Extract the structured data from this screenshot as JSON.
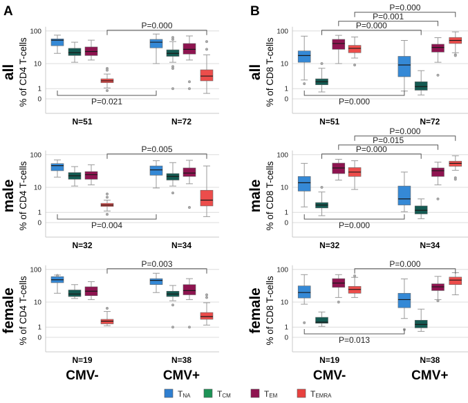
{
  "chart_data": {
    "type": "boxplot",
    "y_scale": "log10(x+1)",
    "y_ticks": [
      "100",
      "10",
      "1",
      "0"
    ],
    "y_tick_values": [
      100,
      10,
      1,
      0
    ],
    "groups": [
      "CMV-",
      "CMV+"
    ],
    "legend": [
      {
        "key": "TNA",
        "base": "T",
        "sub": "NA",
        "color": "#2f7fd0"
      },
      {
        "key": "TCM",
        "base": "T",
        "sub": "CM",
        "color": "#1d9356"
      },
      {
        "key": "TEM",
        "base": "T",
        "sub": "EM",
        "color": "#8e1450"
      },
      {
        "key": "TEMRA",
        "base": "T",
        "sub": "EMRA",
        "color": "#e8413f"
      }
    ],
    "box_colors": {
      "TNA": "#3589d6",
      "TCM": "#145a52",
      "TEM": "#8e1450",
      "TEMRA": "#ec4d4b"
    },
    "panels": [
      {
        "id": "A-all",
        "letter": "A",
        "row_label": "all",
        "ylabel": "% of CD4 T-cells",
        "n_labels": [
          "N=51",
          "N=72"
        ],
        "boxes": {
          "CMV-": {
            "TNA": {
              "low": 21,
              "q1": 36,
              "median": 53,
              "q3": 58,
              "high": 75,
              "outliers": []
            },
            "TCM": {
              "low": 11,
              "q1": 18,
              "median": 22,
              "q3": 30,
              "high": 46,
              "outliers": []
            },
            "TEM": {
              "low": 13,
              "q1": 18,
              "median": 24,
              "q3": 33,
              "high": 53,
              "outliers": []
            },
            "TEMRA": {
              "low": 1.1,
              "q1": 2.0,
              "median": 2.4,
              "q3": 2.9,
              "high": 4.4,
              "outliers": [
                6.9,
                6,
                0.75
              ]
            }
          },
          "CMV+": {
            "TNA": {
              "low": 10,
              "q1": 31,
              "median": 46,
              "q3": 56,
              "high": 81,
              "outliers": []
            },
            "TCM": {
              "low": 11,
              "q1": 17,
              "median": 21,
              "q3": 27,
              "high": 48,
              "outliers": [
                64,
                56,
                8,
                6.9,
                1
              ]
            },
            "TEM": {
              "low": 13,
              "q1": 20,
              "median": 28,
              "q3": 42,
              "high": 71,
              "outliers": [
                2.2,
                1
              ]
            },
            "TEMRA": {
              "low": 0.45,
              "q1": 2.4,
              "median": 3.7,
              "q3": 6.2,
              "high": 19,
              "outliers": [
                48,
                28
              ]
            }
          }
        },
        "brackets": [
          {
            "from": [
              "CMV-",
              "TEMRA"
            ],
            "to": [
              "CMV+",
              "TEMRA"
            ],
            "label": "P=0.000",
            "side": "top",
            "level": 0
          },
          {
            "from": [
              "CMV-",
              "TNA"
            ],
            "to": [
              "CMV+",
              "TNA"
            ],
            "label": "P=0.021",
            "side": "bottom",
            "level": 0
          }
        ]
      },
      {
        "id": "B-all",
        "letter": "B",
        "row_label": "all",
        "ylabel": "% of CD8 T-cells",
        "n_labels": [
          "N=51",
          "N=72"
        ],
        "boxes": {
          "CMV-": {
            "TNA": {
              "low": 2.6,
              "q1": 11,
              "median": 18,
              "q3": 25,
              "high": 70,
              "outliers": [
                1.8
              ]
            },
            "TCM": {
              "low": 0.6,
              "q1": 1.6,
              "median": 2.2,
              "q3": 2.9,
              "high": 7,
              "outliers": [
                10
              ]
            },
            "TEM": {
              "low": 10,
              "q1": 28,
              "median": 42,
              "q3": 56,
              "high": 74,
              "outliers": []
            },
            "TEMRA": {
              "low": 15,
              "q1": 22,
              "median": 30,
              "q3": 37,
              "high": 66,
              "outliers": [
                9
              ]
            }
          },
          "CMV+": {
            "TNA": {
              "low": 0.7,
              "q1": 3.5,
              "median": 9,
              "q3": 17,
              "high": 52,
              "outliers": []
            },
            "TCM": {
              "low": 0.3,
              "q1": 0.8,
              "median": 1.3,
              "q3": 2.2,
              "high": 5.8,
              "outliers": []
            },
            "TEM": {
              "low": 11,
              "q1": 23,
              "median": 32,
              "q3": 40,
              "high": 63,
              "outliers": [
                4
              ]
            },
            "TEMRA": {
              "low": 22,
              "q1": 42,
              "median": 52,
              "q3": 64,
              "high": 94,
              "outliers": [
                19,
                18
              ]
            }
          }
        },
        "brackets": [
          {
            "from": [
              "CMV-",
              "TEMRA"
            ],
            "to": [
              "CMV+",
              "TEMRA"
            ],
            "label": "P=0.000",
            "side": "top",
            "level": 2
          },
          {
            "from": [
              "CMV-",
              "TEM"
            ],
            "to": [
              "CMV+",
              "TEM"
            ],
            "label": "P=0.001",
            "side": "top",
            "level": 1
          },
          {
            "from": [
              "CMV-",
              "TCM"
            ],
            "to": [
              "CMV+",
              "TCM"
            ],
            "label": "P=0.000",
            "side": "top",
            "level": 0
          },
          {
            "from": [
              "CMV-",
              "TNA"
            ],
            "to": [
              "CMV+",
              "TNA"
            ],
            "label": "P=0.000",
            "side": "bottom",
            "level": 0
          }
        ]
      },
      {
        "id": "A-male",
        "letter": "",
        "row_label": "male",
        "ylabel": "% of CD4 T-cells",
        "n_labels": [
          "N=32",
          "N=34"
        ],
        "boxes": {
          "CMV-": {
            "TNA": {
              "low": 21,
              "q1": 33,
              "median": 47,
              "q3": 54,
              "high": 70,
              "outliers": []
            },
            "TCM": {
              "low": 11,
              "q1": 18,
              "median": 23,
              "q3": 29,
              "high": 44,
              "outliers": []
            },
            "TEM": {
              "low": 12,
              "q1": 18,
              "median": 25,
              "q3": 31,
              "high": 50,
              "outliers": []
            },
            "TEMRA": {
              "low": 1.2,
              "q1": 2.0,
              "median": 2.3,
              "q3": 2.7,
              "high": 3.6,
              "outliers": [
                6,
                4.6,
                0.75
              ]
            }
          },
          "CMV+": {
            "TNA": {
              "low": 9.5,
              "q1": 24,
              "median": 35,
              "q3": 46,
              "high": 66,
              "outliers": []
            },
            "TCM": {
              "low": 11,
              "q1": 17,
              "median": 22,
              "q3": 27,
              "high": 58,
              "outliers": [
                6.5
              ]
            },
            "TEM": {
              "low": 13,
              "q1": 22,
              "median": 28,
              "q3": 40,
              "high": 68,
              "outliers": [
                1.8
              ]
            },
            "TEMRA": {
              "low": 0.5,
              "q1": 2.1,
              "median": 3.6,
              "q3": 8,
              "high": 46,
              "outliers": []
            }
          }
        },
        "brackets": [
          {
            "from": [
              "CMV-",
              "TEMRA"
            ],
            "to": [
              "CMV+",
              "TEMRA"
            ],
            "label": "P=0.005",
            "side": "top",
            "level": 0
          },
          {
            "from": [
              "CMV-",
              "TNA"
            ],
            "to": [
              "CMV+",
              "TNA"
            ],
            "label": "P=0.004",
            "side": "bottom",
            "level": 0
          }
        ]
      },
      {
        "id": "B-male",
        "letter": "",
        "row_label": "male",
        "ylabel": "% of CD8 T-cells",
        "n_labels": [
          "N=32",
          "N=34"
        ],
        "boxes": {
          "CMV-": {
            "TNA": {
              "low": 1.9,
              "q1": 7.5,
              "median": 14,
              "q3": 22,
              "high": 55,
              "outliers": []
            },
            "TCM": {
              "low": 0.6,
              "q1": 1.7,
              "median": 2.3,
              "q3": 2.9,
              "high": 7,
              "outliers": [
                10
              ]
            },
            "TEM": {
              "low": 17,
              "q1": 27,
              "median": 40,
              "q3": 56,
              "high": 73,
              "outliers": []
            },
            "TEMRA": {
              "low": 8.5,
              "q1": 22,
              "median": 30,
              "q3": 41,
              "high": 66,
              "outliers": []
            }
          },
          "CMV+": {
            "TNA": {
              "low": 1.1,
              "q1": 2.3,
              "median": 4,
              "q3": 11,
              "high": 30,
              "outliers": []
            },
            "TCM": {
              "low": 0.3,
              "q1": 0.8,
              "median": 1.3,
              "q3": 2.1,
              "high": 4,
              "outliers": []
            },
            "TEM": {
              "low": 12,
              "q1": 22,
              "median": 33,
              "q3": 40,
              "high": 60,
              "outliers": [
                4
              ]
            },
            "TEMRA": {
              "low": 34,
              "q1": 45,
              "median": 55,
              "q3": 64,
              "high": 93,
              "outliers": [
                20,
                18
              ]
            }
          }
        },
        "brackets": [
          {
            "from": [
              "CMV-",
              "TEMRA"
            ],
            "to": [
              "CMV+",
              "TEMRA"
            ],
            "label": "P=0.000",
            "side": "top",
            "level": 2
          },
          {
            "from": [
              "CMV-",
              "TEM"
            ],
            "to": [
              "CMV+",
              "TEM"
            ],
            "label": "P=0.015",
            "side": "top",
            "level": 1
          },
          {
            "from": [
              "CMV-",
              "TCM"
            ],
            "to": [
              "CMV+",
              "TCM"
            ],
            "label": "P=0.000",
            "side": "top",
            "level": 0
          },
          {
            "from": [
              "CMV-",
              "TNA"
            ],
            "to": [
              "CMV+",
              "TNA"
            ],
            "label": "P=0.000",
            "side": "bottom",
            "level": 0
          }
        ]
      },
      {
        "id": "A-female",
        "letter": "",
        "row_label": "female",
        "ylabel": "% of CD4 T-cells",
        "n_labels": [
          "N=19",
          "N=38"
        ],
        "boxes": {
          "CMV-": {
            "TNA": {
              "low": 19,
              "q1": 40,
              "median": 49,
              "q3": 61,
              "high": 68,
              "outliers": [
                66
              ]
            },
            "TCM": {
              "low": 13,
              "q1": 15,
              "median": 18,
              "q3": 24,
              "high": 35,
              "outliers": []
            },
            "TEM": {
              "low": 12,
              "q1": 16,
              "median": 22,
              "q3": 30,
              "high": 43,
              "outliers": []
            },
            "TEMRA": {
              "low": 1.2,
              "q1": 1.5,
              "median": 2.0,
              "q3": 2.4,
              "high": 4.8,
              "outliers": [
                6.2
              ]
            }
          },
          "CMV+": {
            "TNA": {
              "low": 20,
              "q1": 35,
              "median": 47,
              "q3": 53,
              "high": 77,
              "outliers": []
            },
            "TCM": {
              "low": 11,
              "q1": 15,
              "median": 18,
              "q3": 22,
              "high": 33,
              "outliers": [
                8,
                1
              ]
            },
            "TEM": {
              "low": 12,
              "q1": 17,
              "median": 23,
              "q3": 35,
              "high": 53,
              "outliers": [
                1
              ]
            },
            "TEMRA": {
              "low": 1.3,
              "q1": 2.4,
              "median": 3.1,
              "q3": 4.4,
              "high": 9.5,
              "outliers": [
                17,
                14
              ]
            }
          }
        },
        "brackets": [
          {
            "from": [
              "CMV-",
              "TEMRA"
            ],
            "to": [
              "CMV+",
              "TEMRA"
            ],
            "label": "P=0.003",
            "side": "top",
            "level": 0
          }
        ]
      },
      {
        "id": "B-female",
        "letter": "",
        "row_label": "female",
        "ylabel": "% of CD8 T-cells",
        "n_labels": [
          "N=19",
          "N=38"
        ],
        "boxes": {
          "CMV-": {
            "TNA": {
              "low": 8.5,
              "q1": 13.5,
              "median": 20,
              "q3": 32,
              "high": 70,
              "outliers": [
                1.7
              ]
            },
            "TCM": {
              "low": 1.1,
              "q1": 1.6,
              "median": 1.8,
              "q3": 2.9,
              "high": 4.6,
              "outliers": []
            },
            "TEM": {
              "low": 14,
              "q1": 29,
              "median": 39,
              "q3": 53,
              "high": 70,
              "outliers": [
                10
              ]
            },
            "TEMRA": {
              "low": 14,
              "q1": 19,
              "median": 25,
              "q3": 31,
              "high": 58,
              "outliers": [
                64
              ]
            }
          },
          "CMV+": {
            "TNA": {
              "low": 2.6,
              "q1": 6.5,
              "median": 12,
              "q3": 19,
              "high": 52,
              "outliers": [
                0.7
              ]
            },
            "TCM": {
              "low": 0.5,
              "q1": 0.9,
              "median": 1.4,
              "q3": 2.2,
              "high": 5.8,
              "outliers": []
            },
            "TEM": {
              "low": 12,
              "q1": 23,
              "median": 30,
              "q3": 37,
              "high": 62,
              "outliers": [
                11
              ]
            },
            "TEMRA": {
              "low": 17,
              "q1": 35,
              "median": 48,
              "q3": 59,
              "high": 80,
              "outliers": []
            }
          }
        },
        "brackets": [
          {
            "from": [
              "CMV-",
              "TEMRA"
            ],
            "to": [
              "CMV+",
              "TEMRA"
            ],
            "label": "P=0.000",
            "side": "top",
            "level": 0
          },
          {
            "from": [
              "CMV-",
              "TNA"
            ],
            "to": [
              "CMV+",
              "TNA"
            ],
            "label": "P=0.013",
            "side": "bottom",
            "level": 0
          }
        ]
      }
    ]
  },
  "figure": {
    "letters": [
      "A",
      "B"
    ],
    "group_labels": [
      "CMV-",
      "CMV+"
    ]
  }
}
